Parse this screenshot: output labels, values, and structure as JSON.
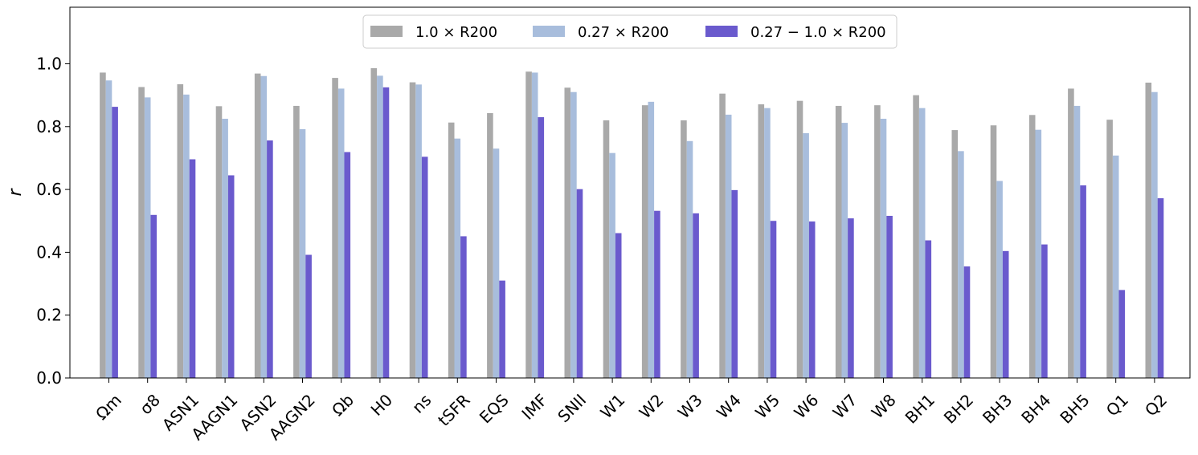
{
  "chart_data": {
    "type": "bar",
    "ylabel": "r",
    "ylim": [
      0,
      1.18
    ],
    "yticks": [
      "0.0",
      "0.2",
      "0.4",
      "0.6",
      "0.8",
      "1.0"
    ],
    "legend_placement": "top-center",
    "categories": [
      "Ωm",
      "σ8",
      "ASN1",
      "AAGN1",
      "ASN2",
      "AAGN2",
      "Ωb",
      "H0",
      "ns",
      "tSFR",
      "EQS",
      "IMF",
      "SNII",
      "W1",
      "W2",
      "W3",
      "W4",
      "W5",
      "W6",
      "W7",
      "W8",
      "BH1",
      "BH2",
      "BH3",
      "BH4",
      "BH5",
      "Q1",
      "Q2"
    ],
    "series": [
      {
        "name": "1.0 × R200",
        "color": "#a9a9a9",
        "values": [
          0.972,
          0.926,
          0.935,
          0.865,
          0.969,
          0.866,
          0.955,
          0.986,
          0.941,
          0.813,
          0.843,
          0.975,
          0.924,
          0.82,
          0.868,
          0.82,
          0.905,
          0.871,
          0.882,
          0.866,
          0.868,
          0.9,
          0.789,
          0.804,
          0.837,
          0.921,
          0.822,
          0.94
        ]
      },
      {
        "name": "0.27 × R200",
        "color": "#a8bddc",
        "values": [
          0.947,
          0.893,
          0.902,
          0.825,
          0.961,
          0.792,
          0.921,
          0.962,
          0.934,
          0.762,
          0.73,
          0.972,
          0.91,
          0.716,
          0.879,
          0.754,
          0.838,
          0.859,
          0.779,
          0.812,
          0.825,
          0.859,
          0.722,
          0.627,
          0.79,
          0.866,
          0.708,
          0.91
        ]
      },
      {
        "name": "0.27 − 1.0 × R200",
        "color": "#6a5acd",
        "values": [
          0.863,
          0.519,
          0.696,
          0.645,
          0.756,
          0.392,
          0.719,
          0.925,
          0.704,
          0.451,
          0.31,
          0.83,
          0.601,
          0.461,
          0.532,
          0.524,
          0.598,
          0.5,
          0.498,
          0.508,
          0.516,
          0.438,
          0.355,
          0.404,
          0.425,
          0.613,
          0.28,
          0.572
        ]
      }
    ]
  }
}
